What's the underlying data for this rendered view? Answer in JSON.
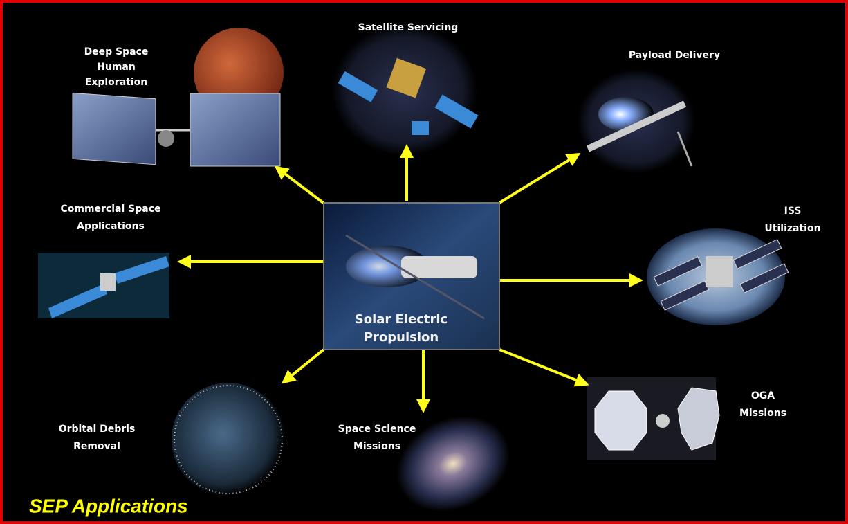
{
  "center": {
    "label": [
      "Solar Electric",
      "Propulsion"
    ]
  },
  "nodes": [
    {
      "label": [
        "Deep Space",
        "Human",
        "Exploration"
      ]
    },
    {
      "label": [
        "Satellite Servicing"
      ]
    },
    {
      "label": [
        "Payload Delivery"
      ]
    },
    {
      "label": [
        "ISS",
        "Utilization"
      ]
    },
    {
      "label": [
        "OGA",
        "Missions"
      ]
    },
    {
      "label": [
        "Space Science",
        "Missions"
      ]
    },
    {
      "label": [
        "Orbital Debris",
        "Removal"
      ]
    },
    {
      "label": [
        "Commercial Space",
        "Applications"
      ]
    }
  ],
  "caption": "SEP Applications"
}
